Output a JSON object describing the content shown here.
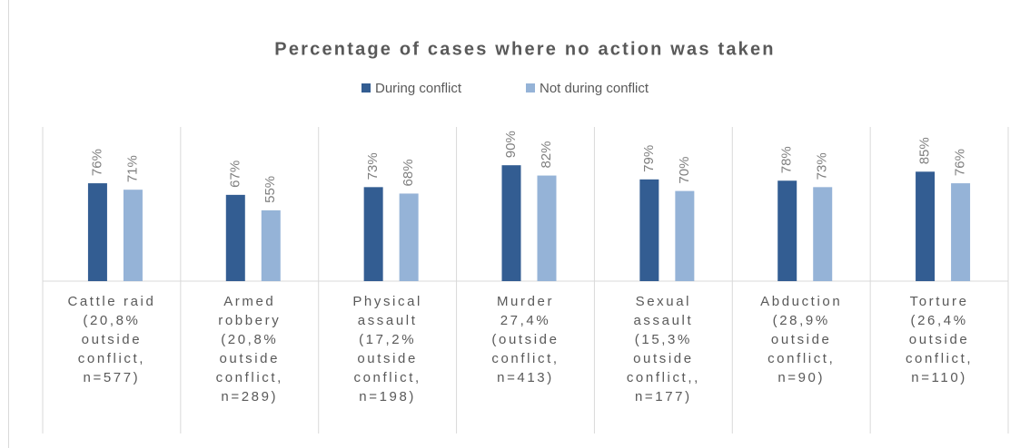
{
  "chart_data": {
    "type": "bar",
    "title": "Percentage of cases where no action was taken",
    "categories": [
      [
        "Cattle raid",
        "(20,8%",
        "outside",
        "conflict,",
        "n=577)"
      ],
      [
        "Armed",
        "robbery",
        "(20,8%",
        "outside",
        "conflict,",
        "n=289)"
      ],
      [
        "Physical",
        "assault",
        "(17,2%",
        "outside",
        "conflict,",
        "n=198)"
      ],
      [
        "Murder",
        "27,4%",
        "(outside",
        "conflict,",
        "n=413)"
      ],
      [
        "Sexual",
        "assault",
        "(15,3%",
        "outside",
        "conflict,,",
        "n=177)"
      ],
      [
        "Abduction",
        "(28,9%",
        "outside",
        "conflict,",
        "n=90)"
      ],
      [
        "Torture",
        "(26,4%",
        "outside",
        "conflict,",
        "n=110)"
      ]
    ],
    "series": [
      {
        "name": "During conflict",
        "color": "#335d92",
        "values": [
          76,
          67,
          73,
          90,
          79,
          78,
          85
        ],
        "value_labels": [
          "76%",
          "67%",
          "73%",
          "90%",
          "79%",
          "78%",
          "85%"
        ]
      },
      {
        "name": "Not during conflict",
        "color": "#95b3d7",
        "values": [
          71,
          55,
          68,
          82,
          70,
          73,
          76
        ],
        "value_labels": [
          "71%",
          "55%",
          "68%",
          "82%",
          "70%",
          "73%",
          "76%"
        ]
      }
    ],
    "ylim": [
      0,
      100
    ],
    "legend": "top"
  }
}
